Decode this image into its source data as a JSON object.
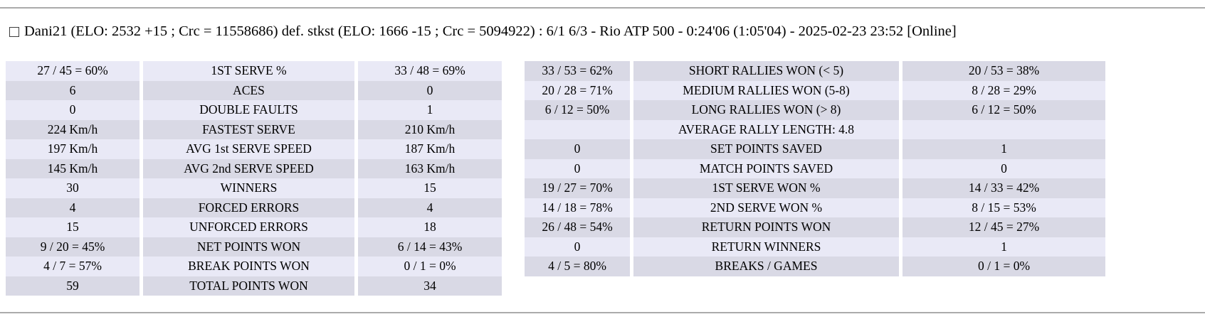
{
  "header": {
    "match_summary": "Dani21 (ELO: 2532 +15 ; Crc = 11558686) def. stkst (ELO: 1666 -15 ; Crc = 5094922) : 6/1 6/3 - Rio ATP 500 - 0:24'06 (1:05'04) - 2025-02-23 23:52 [Online]",
    "checkbox_checked": false
  },
  "colors": {
    "row_light": "#e9e9f6",
    "row_dark": "#d9d9e5",
    "divider": "#ababab",
    "text": "#000000"
  },
  "stats_left": {
    "rows": [
      {
        "p1": "27 / 45 = 60%",
        "label": "1ST SERVE %",
        "p2": "33 / 48 = 69%"
      },
      {
        "p1": "6",
        "label": "ACES",
        "p2": "0"
      },
      {
        "p1": "0",
        "label": "DOUBLE FAULTS",
        "p2": "1"
      },
      {
        "p1": "224 Km/h",
        "label": "FASTEST SERVE",
        "p2": "210 Km/h"
      },
      {
        "p1": "197 Km/h",
        "label": "AVG 1st SERVE SPEED",
        "p2": "187 Km/h"
      },
      {
        "p1": "145 Km/h",
        "label": "AVG 2nd SERVE SPEED",
        "p2": "163 Km/h"
      },
      {
        "p1": "30",
        "label": "WINNERS",
        "p2": "15"
      },
      {
        "p1": "4",
        "label": "FORCED ERRORS",
        "p2": "4"
      },
      {
        "p1": "15",
        "label": "UNFORCED ERRORS",
        "p2": "18"
      },
      {
        "p1": "9 / 20 = 45%",
        "label": "NET POINTS WON",
        "p2": "6 / 14 = 43%"
      },
      {
        "p1": "4 / 7 = 57%",
        "label": "BREAK POINTS WON",
        "p2": "0 / 1 = 0%"
      },
      {
        "p1": "59",
        "label": "TOTAL POINTS WON",
        "p2": "34"
      }
    ]
  },
  "stats_right": {
    "rows": [
      {
        "p1": "33 / 53 = 62%",
        "label": "SHORT RALLIES WON (< 5)",
        "p2": "20 / 53 = 38%"
      },
      {
        "p1": "20 / 28 = 71%",
        "label": "MEDIUM RALLIES WON (5-8)",
        "p2": "8 / 28 = 29%"
      },
      {
        "p1": "6 / 12 = 50%",
        "label": "LONG RALLIES WON (> 8)",
        "p2": "6 / 12 = 50%"
      },
      {
        "p1": "",
        "label": "AVERAGE RALLY LENGTH: 4.8",
        "p2": ""
      },
      {
        "p1": "0",
        "label": "SET POINTS SAVED",
        "p2": "1"
      },
      {
        "p1": "0",
        "label": "MATCH POINTS SAVED",
        "p2": "0"
      },
      {
        "p1": "19 / 27 = 70%",
        "label": "1ST SERVE WON %",
        "p2": "14 / 33 = 42%"
      },
      {
        "p1": "14 / 18 = 78%",
        "label": "2ND SERVE WON %",
        "p2": "8 / 15 = 53%"
      },
      {
        "p1": "26 / 48 = 54%",
        "label": "RETURN POINTS WON",
        "p2": "12 / 45 = 27%"
      },
      {
        "p1": "0",
        "label": "RETURN WINNERS",
        "p2": "1"
      },
      {
        "p1": "4 / 5 = 80%",
        "label": "BREAKS / GAMES",
        "p2": "0 / 1 = 0%"
      }
    ]
  }
}
